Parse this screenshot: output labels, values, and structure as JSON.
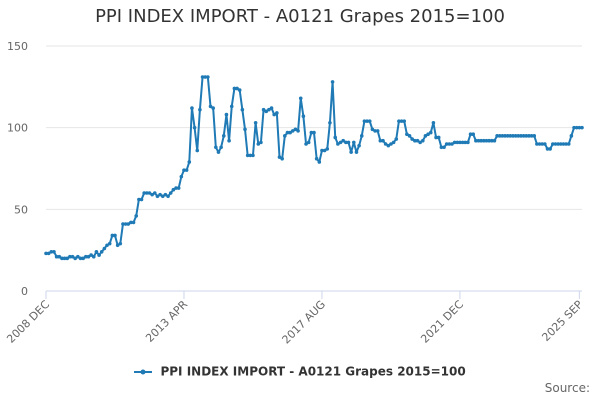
{
  "chart_data": {
    "type": "line",
    "title": "PPI INDEX IMPORT - A0121 Grapes 2015=100",
    "xlabel": "",
    "ylabel": "",
    "ylim": [
      0,
      150
    ],
    "yticks": [
      "0",
      "50",
      "100",
      "150"
    ],
    "xtick_labels": [
      "2008 DEC",
      "2013 APR",
      "2017 AUG",
      "2021 DEC",
      "2025 SEP"
    ],
    "xtick_index": [
      0,
      52,
      104,
      156,
      201
    ],
    "grid": true,
    "legend": "bottom-center",
    "series_color": "#1f7ab5",
    "series": [
      {
        "name": "PPI INDEX IMPORT - A0121 Grapes 2015=100",
        "values": [
          23,
          23,
          24,
          24,
          21,
          21,
          20,
          20,
          20,
          21,
          21,
          20,
          21,
          20,
          20,
          21,
          21,
          22,
          21,
          24,
          22,
          24,
          26,
          28,
          29,
          34,
          34,
          28,
          29,
          41,
          41,
          41,
          42,
          42,
          46,
          56,
          56,
          60,
          60,
          60,
          59,
          60,
          58,
          59,
          58,
          59,
          58,
          60,
          62,
          63,
          63,
          70,
          74,
          74,
          79,
          112,
          100,
          86,
          111,
          131,
          131,
          131,
          113,
          112,
          88,
          85,
          88,
          95,
          108,
          92,
          113,
          124,
          124,
          123,
          111,
          99,
          83,
          83,
          83,
          103,
          90,
          91,
          111,
          110,
          111,
          112,
          108,
          109,
          82,
          81,
          95,
          97,
          97,
          98,
          99,
          98,
          118,
          107,
          90,
          91,
          97,
          97,
          81,
          79,
          86,
          86,
          87,
          103,
          128,
          94,
          90,
          91,
          92,
          91,
          91,
          85,
          91,
          85,
          89,
          95,
          104,
          104,
          104,
          99,
          98,
          98,
          92,
          92,
          90,
          89,
          90,
          91,
          93,
          104,
          104,
          104,
          96,
          95,
          93,
          92,
          92,
          91,
          92,
          95,
          96,
          97,
          103,
          94,
          94,
          88,
          88,
          90,
          90,
          90,
          91,
          91,
          91,
          91,
          91,
          91,
          96,
          96,
          92,
          92,
          92,
          92,
          92,
          92,
          92,
          92,
          95,
          95,
          95,
          95,
          95,
          95,
          95,
          95,
          95,
          95,
          95,
          95,
          95,
          95,
          95,
          90,
          90,
          90,
          90,
          87,
          87,
          90,
          90,
          90,
          90,
          90,
          90,
          90,
          95,
          100,
          100,
          100,
          100
        ]
      }
    ],
    "credits": "Source:"
  }
}
